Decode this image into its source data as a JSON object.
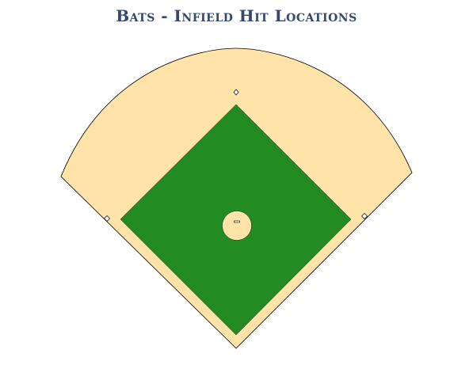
{
  "title": "Bats - Infield Hit Locations",
  "colors": {
    "title": "#33496e",
    "dirt": "#ffe3a9",
    "grass": "#228b22",
    "outline": "#000000",
    "base": "#ffffff"
  }
}
